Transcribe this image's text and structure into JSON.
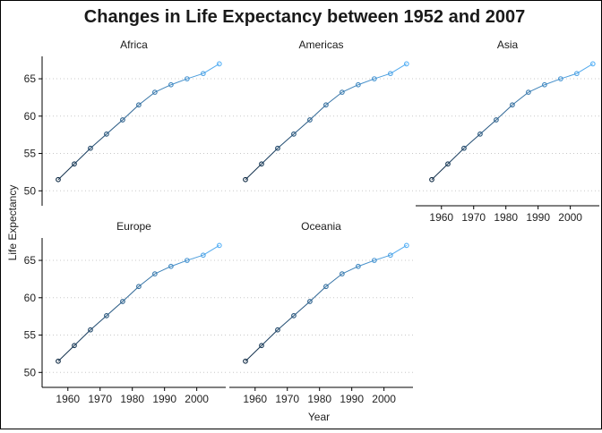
{
  "chart_data": {
    "type": "line",
    "title": "Changes in Life Expectancy between 1952 and 2007",
    "xlabel": "Year",
    "ylabel": "Life Expectancy",
    "xlim": [
      1952,
      2009
    ],
    "ylim": [
      48,
      68
    ],
    "x_ticks": [
      1960,
      1970,
      1980,
      1990,
      2000
    ],
    "y_ticks": [
      50,
      55,
      60,
      65
    ],
    "grid": "horizontal dotted",
    "color_low": "#0f2a44",
    "color_high": "#56b1f7",
    "x": [
      1957,
      1962,
      1967,
      1972,
      1977,
      1982,
      1987,
      1992,
      1997,
      2002,
      2007
    ],
    "panels": [
      {
        "name": "Africa",
        "values": [
          51.5,
          53.6,
          55.7,
          57.6,
          59.5,
          61.5,
          63.2,
          64.2,
          65.0,
          65.7,
          67.0
        ]
      },
      {
        "name": "Americas",
        "values": [
          51.5,
          53.6,
          55.7,
          57.6,
          59.5,
          61.5,
          63.2,
          64.2,
          65.0,
          65.7,
          67.0
        ]
      },
      {
        "name": "Asia",
        "values": [
          51.5,
          53.6,
          55.7,
          57.6,
          59.5,
          61.5,
          63.2,
          64.2,
          65.0,
          65.7,
          67.0
        ]
      },
      {
        "name": "Europe",
        "values": [
          51.5,
          53.6,
          55.7,
          57.6,
          59.5,
          61.5,
          63.2,
          64.2,
          65.0,
          65.7,
          67.0
        ]
      },
      {
        "name": "Oceania",
        "values": [
          51.5,
          53.6,
          55.7,
          57.6,
          59.5,
          61.5,
          63.2,
          64.2,
          65.0,
          65.7,
          67.0
        ]
      }
    ]
  }
}
